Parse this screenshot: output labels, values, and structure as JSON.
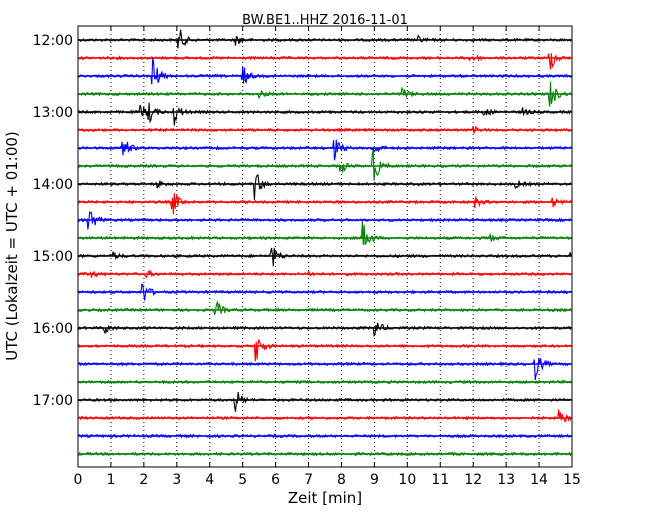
{
  "chart_data": {
    "type": "line",
    "title": "BW.BE1..HHZ 2016-11-01",
    "xlabel": "Zeit  [min]",
    "ylabel": "UTC (Lokalzeit = UTC + 01:00)",
    "xlim": [
      0,
      15
    ],
    "xticks": [
      "0",
      "1",
      "2",
      "3",
      "4",
      "5",
      "6",
      "7",
      "8",
      "9",
      "10",
      "11",
      "12",
      "13",
      "14",
      "15"
    ],
    "yticks": [
      "12:00",
      "13:00",
      "14:00",
      "15:00",
      "16:00",
      "17:00"
    ],
    "grid": "vertical dotted",
    "color_cycle": [
      "#000000",
      "#ff0000",
      "#0000ff",
      "#008000"
    ],
    "traces": [
      {
        "start": "12:00",
        "events": [
          {
            "t": 3.05,
            "amp": 0.7
          },
          {
            "t": 4.8,
            "amp": 0.25
          },
          {
            "t": 10.3,
            "amp": 0.2
          }
        ]
      },
      {
        "start": "12:15",
        "events": [
          {
            "t": 11.9,
            "amp": 0.3
          },
          {
            "t": 14.3,
            "amp": 0.8
          }
        ]
      },
      {
        "start": "12:30",
        "events": [
          {
            "t": 2.25,
            "amp": 1.2
          },
          {
            "t": 4.95,
            "amp": 0.8
          }
        ]
      },
      {
        "start": "12:45",
        "events": [
          {
            "t": 5.5,
            "amp": 0.2
          },
          {
            "t": 9.85,
            "amp": 0.35
          },
          {
            "t": 14.3,
            "amp": 1.0
          }
        ]
      },
      {
        "start": "13:00",
        "events": [
          {
            "t": 1.9,
            "amp": 0.4
          },
          {
            "t": 2.15,
            "amp": 0.5
          },
          {
            "t": 2.9,
            "amp": 0.75
          },
          {
            "t": 12.3,
            "amp": 0.25
          },
          {
            "t": 13.5,
            "amp": 0.2
          }
        ]
      },
      {
        "start": "13:15",
        "events": [
          {
            "t": 12.0,
            "amp": 0.15
          }
        ]
      },
      {
        "start": "13:30",
        "events": [
          {
            "t": 1.35,
            "amp": 0.75
          },
          {
            "t": 7.75,
            "amp": 0.8
          },
          {
            "t": 8.95,
            "amp": 0.45
          }
        ]
      },
      {
        "start": "13:45",
        "events": [
          {
            "t": 7.95,
            "amp": 0.45
          },
          {
            "t": 8.95,
            "amp": 1.1
          }
        ]
      },
      {
        "start": "14:00",
        "events": [
          {
            "t": 2.4,
            "amp": 0.25
          },
          {
            "t": 5.35,
            "amp": 0.95
          },
          {
            "t": 13.3,
            "amp": 0.2
          }
        ]
      },
      {
        "start": "14:15",
        "events": [
          {
            "t": 2.85,
            "amp": 0.85
          },
          {
            "t": 12.0,
            "amp": 0.4
          },
          {
            "t": 14.4,
            "amp": 0.25
          }
        ]
      },
      {
        "start": "14:30",
        "events": [
          {
            "t": 0.3,
            "amp": 1.0
          }
        ]
      },
      {
        "start": "14:45",
        "events": [
          {
            "t": 8.65,
            "amp": 0.9
          },
          {
            "t": 12.5,
            "amp": 0.2
          }
        ]
      },
      {
        "start": "15:00",
        "events": [
          {
            "t": 1.05,
            "amp": 0.2
          },
          {
            "t": 5.85,
            "amp": 0.8
          },
          {
            "t": 14.95,
            "amp": 0.3
          }
        ]
      },
      {
        "start": "15:15",
        "events": [
          {
            "t": 0.4,
            "amp": 0.2
          },
          {
            "t": 2.05,
            "amp": 0.2
          },
          {
            "t": 7.0,
            "amp": 0.15
          }
        ]
      },
      {
        "start": "15:30",
        "events": [
          {
            "t": 1.95,
            "amp": 0.7
          }
        ]
      },
      {
        "start": "15:45",
        "events": [
          {
            "t": 4.15,
            "amp": 0.7
          }
        ]
      },
      {
        "start": "16:00",
        "events": [
          {
            "t": 0.8,
            "amp": 0.3
          },
          {
            "t": 9.0,
            "amp": 0.55
          }
        ]
      },
      {
        "start": "16:15",
        "events": [
          {
            "t": 5.4,
            "amp": 0.9
          }
        ]
      },
      {
        "start": "16:30",
        "events": [
          {
            "t": 13.85,
            "amp": 0.95
          }
        ]
      },
      {
        "start": "16:45",
        "events": []
      },
      {
        "start": "17:00",
        "events": [
          {
            "t": 4.75,
            "amp": 0.75
          }
        ]
      },
      {
        "start": "17:15",
        "events": [
          {
            "t": 14.6,
            "amp": 0.55
          }
        ]
      },
      {
        "start": "17:30",
        "events": []
      },
      {
        "start": "17:45",
        "events": []
      }
    ]
  }
}
